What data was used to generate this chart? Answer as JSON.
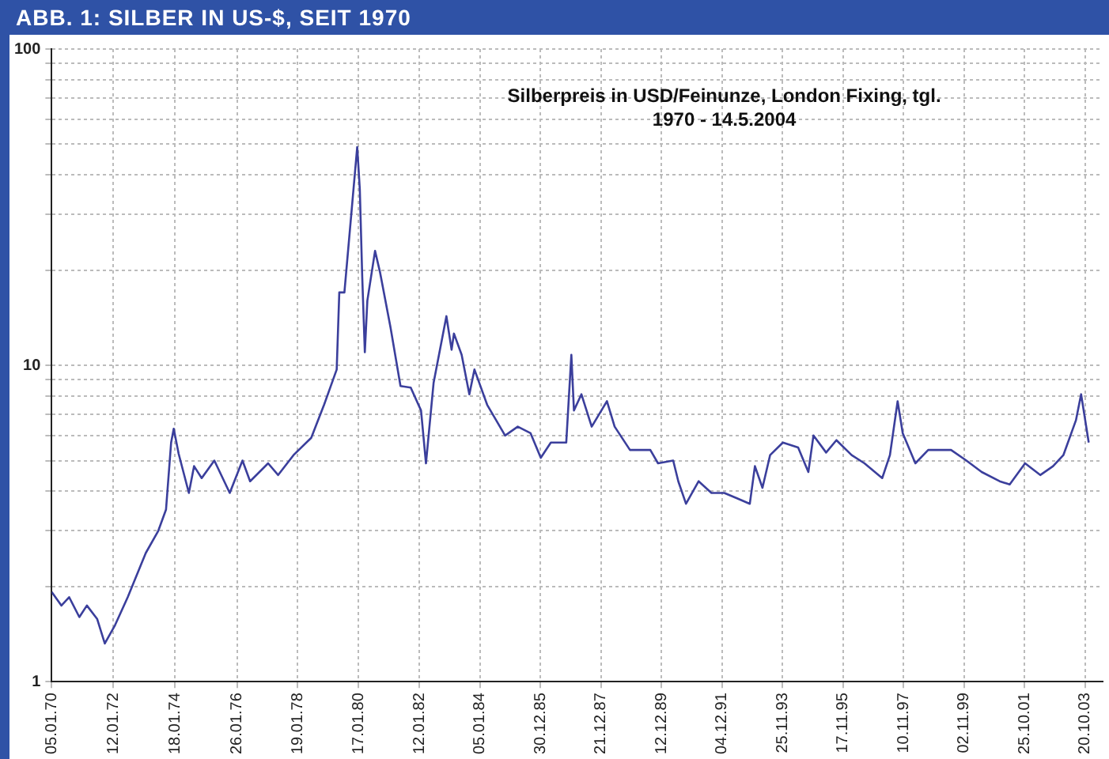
{
  "chart_data": {
    "type": "line",
    "title": "ABB. 1: SILBER IN US-$, SEIT 1970",
    "annotations": [
      "Silberpreis in USD/Feinunze, London Fixing, tgl.",
      "1970 - 14.5.2004"
    ],
    "x": [
      "1970-01-05",
      "1970-05",
      "1970-08",
      "1970-12",
      "1971-03",
      "1971-07",
      "1971-10",
      "1972-02",
      "1972-07",
      "1973-02",
      "1973-07",
      "1973-10",
      "1973-12",
      "1974-01",
      "1974-03",
      "1974-07",
      "1974-09",
      "1974-12",
      "1975-05",
      "1975-11",
      "1976-04",
      "1976-07",
      "1977-02",
      "1977-06",
      "1977-12",
      "1978-07",
      "1978-12",
      "1979-05",
      "1979-06",
      "1979-08",
      "1980-01",
      "1980-02",
      "1980-03",
      "1980-04",
      "1980-05",
      "1980-08",
      "1980-10",
      "1981-02",
      "1981-06",
      "1981-10",
      "1982-02",
      "1982-04",
      "1982-07",
      "1982-12",
      "1983-02",
      "1983-03",
      "1983-06",
      "1983-09",
      "1983-11",
      "1984-04",
      "1984-11",
      "1985-04",
      "1985-09",
      "1986-01",
      "1986-05",
      "1986-08",
      "1986-11",
      "1987-01",
      "1987-02",
      "1987-05",
      "1987-09",
      "1988-03",
      "1988-06",
      "1988-12",
      "1989-08",
      "1989-11",
      "1990-05",
      "1990-07",
      "1990-10",
      "1991-03",
      "1991-08",
      "1992-01",
      "1992-06",
      "1992-11",
      "1993-01",
      "1993-04",
      "1993-07",
      "1993-12",
      "1994-06",
      "1994-10",
      "1994-12",
      "1995-05",
      "1995-09",
      "1996-03",
      "1996-08",
      "1997-03",
      "1997-06",
      "1997-09",
      "1997-11",
      "1998-04",
      "1998-09",
      "1999-06",
      "1999-12",
      "2000-06",
      "2001-01",
      "2001-05",
      "2001-11",
      "2002-05",
      "2002-10",
      "2003-02",
      "2003-07",
      "2003-09",
      "2003-12"
    ],
    "values": [
      1.92,
      1.74,
      1.85,
      1.6,
      1.74,
      1.58,
      1.32,
      1.51,
      1.85,
      2.55,
      3.0,
      3.5,
      5.7,
      6.3,
      5.25,
      3.95,
      4.8,
      4.4,
      5.0,
      3.95,
      5.0,
      4.3,
      4.9,
      4.5,
      5.2,
      5.9,
      7.5,
      9.7,
      17,
      17,
      49,
      36,
      19,
      11,
      16,
      23,
      19.6,
      13.2,
      8.6,
      8.5,
      7.2,
      4.9,
      8.8,
      14.3,
      11.2,
      12.6,
      10.8,
      8.1,
      9.7,
      7.5,
      6.0,
      6.4,
      6.1,
      5.1,
      5.7,
      5.7,
      5.7,
      10.8,
      7.2,
      8.1,
      6.4,
      7.7,
      6.4,
      5.4,
      5.4,
      4.9,
      5.0,
      4.3,
      3.65,
      4.3,
      3.95,
      3.95,
      3.8,
      3.65,
      4.8,
      4.1,
      5.2,
      5.7,
      5.5,
      4.6,
      6.0,
      5.3,
      5.8,
      5.2,
      4.9,
      4.4,
      5.2,
      7.7,
      6.1,
      4.9,
      5.4,
      5.4,
      5.0,
      4.6,
      4.3,
      4.2,
      4.9,
      4.5,
      4.8,
      5.2,
      6.7,
      8.1,
      5.7
    ],
    "color": "#3b3f9c",
    "xlim": [
      "1970-01-05",
      "2004-05-14"
    ],
    "xticks": [
      {
        "value": "1970-01-05",
        "label": "05.01.70"
      },
      {
        "value": "1972-01-12",
        "label": "12.01.72"
      },
      {
        "value": "1974-01-18",
        "label": "18.01.74"
      },
      {
        "value": "1976-01-26",
        "label": "26.01.76"
      },
      {
        "value": "1978-01-19",
        "label": "19.01.78"
      },
      {
        "value": "1980-01-17",
        "label": "17.01.80"
      },
      {
        "value": "1982-01-12",
        "label": "12.01.82"
      },
      {
        "value": "1984-01-05",
        "label": "05.01.84"
      },
      {
        "value": "1985-12-30",
        "label": "30.12.85"
      },
      {
        "value": "1987-12-21",
        "label": "21.12.87"
      },
      {
        "value": "1989-12-12",
        "label": "12.12.89"
      },
      {
        "value": "1991-12-04",
        "label": "04.12.91"
      },
      {
        "value": "1993-11-25",
        "label": "25.11.93"
      },
      {
        "value": "1995-11-17",
        "label": "17.11.95"
      },
      {
        "value": "1997-11-10",
        "label": "10.11.97"
      },
      {
        "value": "1999-11-02",
        "label": "02.11.99"
      },
      {
        "value": "2001-10-25",
        "label": "25.10.01"
      },
      {
        "value": "2003-10-20",
        "label": "20.10.03"
      }
    ],
    "ylim": [
      1,
      100
    ],
    "yticks": [
      1,
      {
        "value": 2,
        "label": null
      },
      {
        "value": 3,
        "label": null
      },
      {
        "value": 4,
        "label": null
      },
      {
        "value": 5,
        "label": null
      },
      {
        "value": 6,
        "label": null
      },
      {
        "value": 7,
        "label": null
      },
      {
        "value": 8,
        "label": null
      },
      {
        "value": 9,
        "label": null
      },
      10,
      {
        "value": 20,
        "label": null
      },
      {
        "value": 30,
        "label": null
      },
      {
        "value": 40,
        "label": null
      },
      {
        "value": 50,
        "label": null
      },
      {
        "value": 60,
        "label": null
      },
      {
        "value": 70,
        "label": null
      },
      {
        "value": 80,
        "label": null
      },
      {
        "value": 90,
        "label": null
      },
      100
    ],
    "log": true,
    "grid": true,
    "legend": false,
    "marker": "none",
    "line_style": "solid"
  }
}
